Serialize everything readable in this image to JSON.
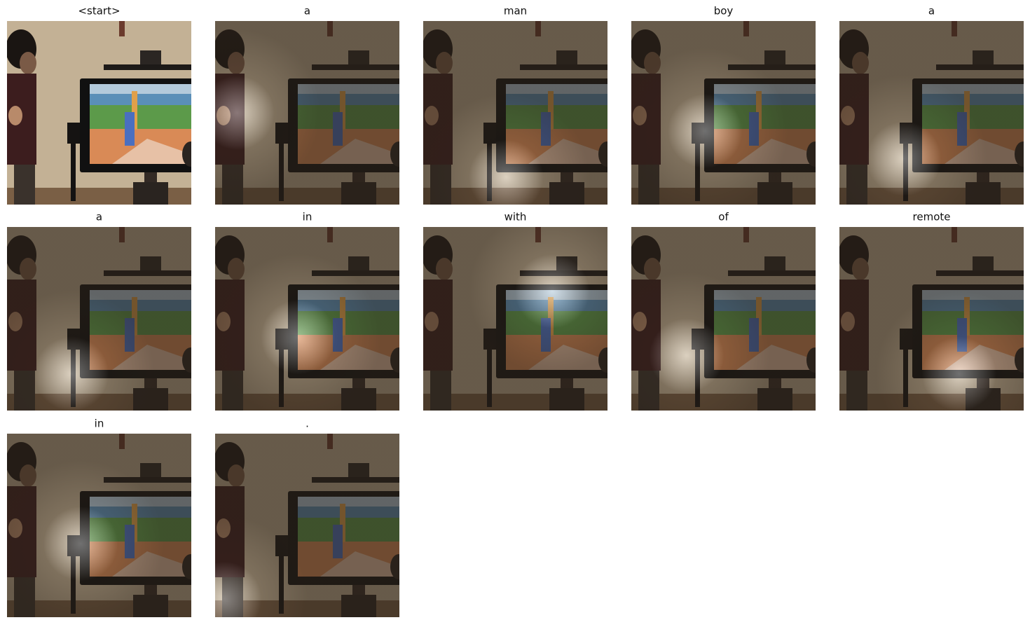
{
  "panels": [
    {
      "title": "<start>"
    },
    {
      "title": "a"
    },
    {
      "title": "man"
    },
    {
      "title": "boy"
    },
    {
      "title": "a"
    },
    {
      "title": "a"
    },
    {
      "title": "in"
    },
    {
      "title": "with"
    },
    {
      "title": "of"
    },
    {
      "title": "remote"
    },
    {
      "title": "in"
    },
    {
      "title": "."
    }
  ]
}
